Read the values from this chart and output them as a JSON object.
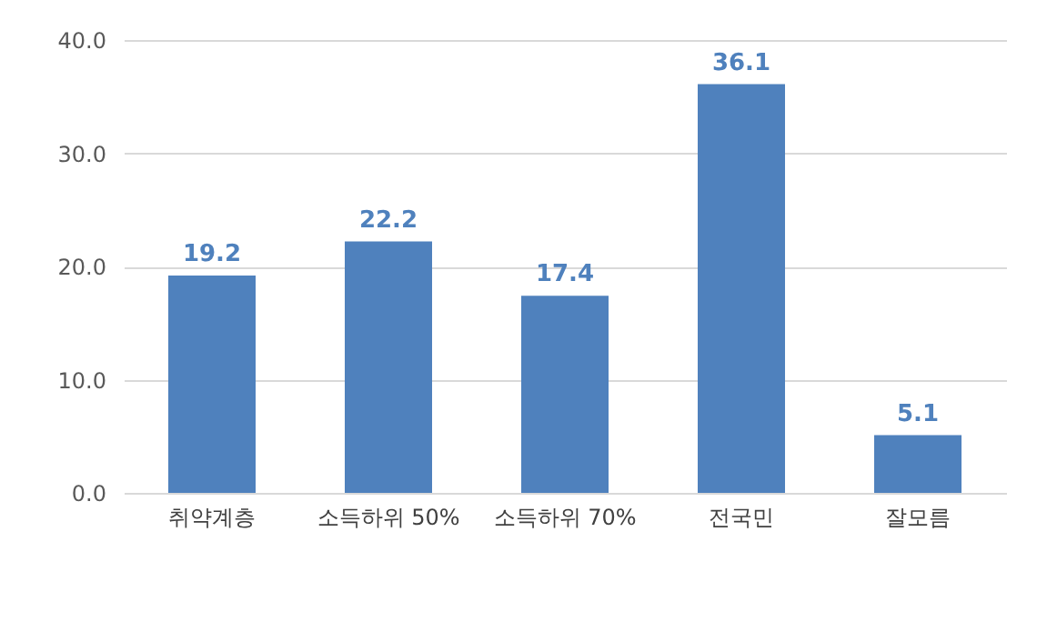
{
  "chart_data": {
    "type": "bar",
    "categories": [
      "취약계층",
      "소득하위 50%",
      "소득하위 70%",
      "전국민",
      "잘모름"
    ],
    "values": [
      19.2,
      22.2,
      17.4,
      36.1,
      5.1
    ],
    "color": "#4f81bd",
    "ylim": [
      0,
      40
    ],
    "yticks": [
      {
        "value": 0,
        "label": "0.0"
      },
      {
        "value": 10,
        "label": "10.0"
      },
      {
        "value": 20,
        "label": "20.0"
      },
      {
        "value": 30,
        "label": "30.0"
      },
      {
        "value": 40,
        "label": "40.0"
      }
    ],
    "grid": "y",
    "data_labels": true
  }
}
